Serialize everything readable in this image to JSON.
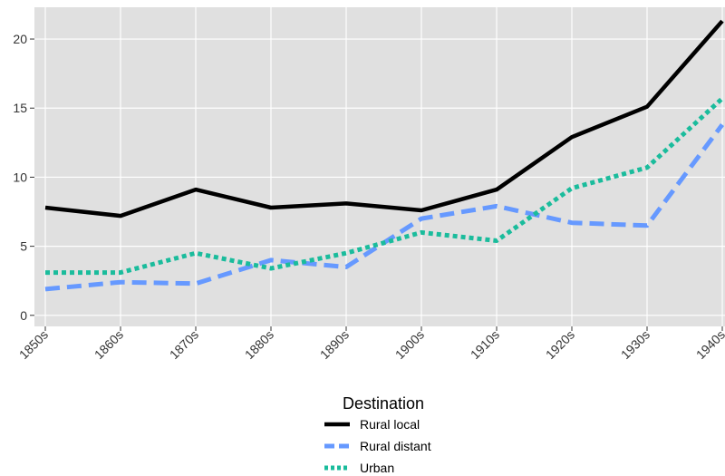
{
  "chart_data": {
    "type": "line",
    "categories": [
      "1850s",
      "1860s",
      "1870s",
      "1880s",
      "1890s",
      "1900s",
      "1910s",
      "1920s",
      "1930s",
      "1940s"
    ],
    "series": [
      {
        "name": "Rural local",
        "values": [
          7.8,
          7.2,
          9.1,
          7.8,
          8.1,
          7.6,
          9.1,
          12.9,
          15.1,
          21.3
        ],
        "color": "#000000",
        "dash": "solid"
      },
      {
        "name": "Rural distant",
        "values": [
          1.9,
          2.4,
          2.3,
          4.0,
          3.5,
          7.0,
          7.9,
          6.7,
          6.5,
          13.8
        ],
        "color": "#6699ff",
        "dash": "dashed"
      },
      {
        "name": "Urban",
        "values": [
          3.1,
          3.1,
          4.5,
          3.4,
          4.5,
          6.0,
          5.4,
          9.2,
          10.7,
          15.7
        ],
        "color": "#1abc9c",
        "dash": "dotted"
      }
    ],
    "yticks": [
      0,
      5,
      10,
      15,
      20
    ],
    "ylim": [
      -0.8,
      22.3
    ],
    "grid": true,
    "legend": {
      "title": "Destination",
      "position": "bottom"
    },
    "panel_color": "#e0e0e0"
  }
}
